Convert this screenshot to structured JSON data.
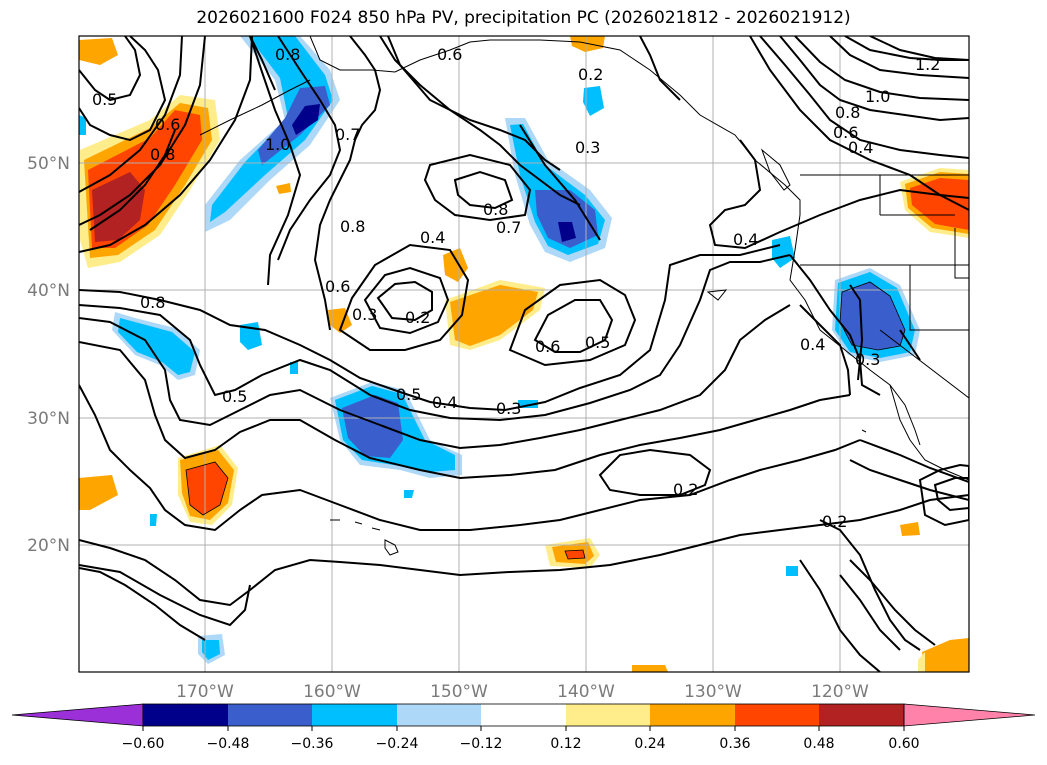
{
  "title": "2026021600 F024 850 hPa PV, precipitation PC (2026021812 - 2026021912)",
  "lat_labels": [
    "50°N",
    "40°N",
    "30°N",
    "20°N"
  ],
  "lon_labels": [
    "170°W",
    "160°W",
    "150°W",
    "140°W",
    "130°W",
    "120°W"
  ],
  "contour_labels": [
    "0.5",
    "0.6",
    "0.8",
    "1.0",
    "0.7",
    "0.8",
    "0.6",
    "0.2",
    "0.3",
    "1.2",
    "1.0",
    "0.8",
    "0.6",
    "0.4",
    "0.8",
    "0.7",
    "0.8",
    "0.4",
    "0.4",
    "0.6",
    "0.3",
    "0.2",
    "0.8",
    "0.6",
    "0.5",
    "0.5",
    "0.5",
    "0.4",
    "0.3",
    "0.2",
    "0.2",
    "0.4",
    "0.3"
  ],
  "colorbar": {
    "ticks": [
      "−0.60",
      "−0.48",
      "−0.36",
      "−0.24",
      "−0.12",
      "0.12",
      "0.24",
      "0.36",
      "0.48",
      "0.60"
    ],
    "colors": [
      "#9b30d9",
      "#00008b",
      "#3a5fcd",
      "#00bfff",
      "#add8f7",
      "#ffffff",
      "#ffec8b",
      "#ffa500",
      "#ff4500",
      "#b22222",
      "#ff82ab"
    ]
  }
}
